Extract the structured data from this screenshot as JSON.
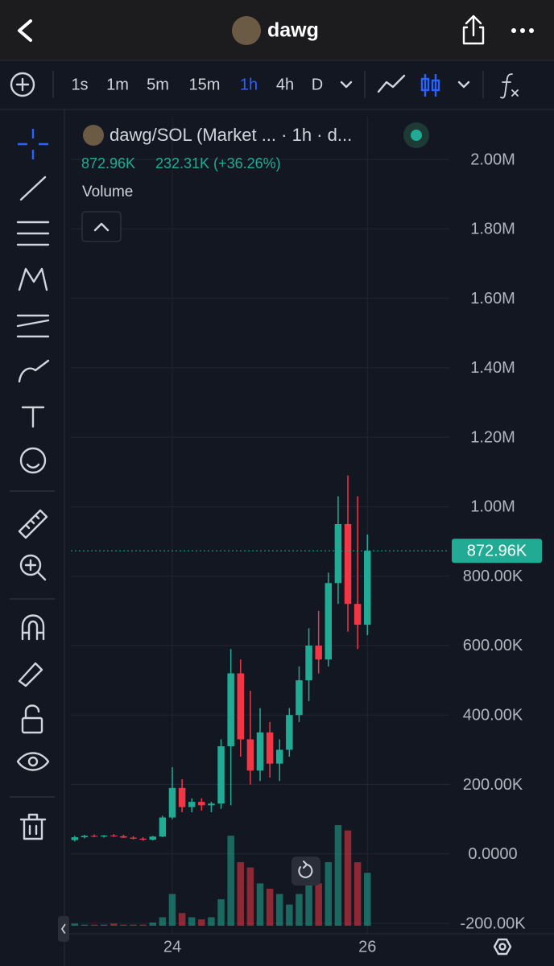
{
  "header": {
    "title": "dawg"
  },
  "toolbar": {
    "intervals": [
      "1s",
      "1m",
      "5m",
      "15m",
      "1h",
      "4h",
      "D"
    ],
    "active_interval": 4
  },
  "chart_data": {
    "type": "candlestick",
    "title": "dawg/SOL (Market ... · 1h · d...",
    "change": "232.31K (+36.26%)",
    "volume_label": "Volume",
    "x": [
      23.0,
      23.1,
      23.2,
      23.3,
      23.4,
      23.5,
      23.6,
      23.7,
      23.8,
      23.9,
      24.0,
      24.1,
      24.2,
      24.3,
      24.4,
      24.5,
      24.6,
      24.7,
      24.8,
      24.9,
      25.0,
      25.1,
      25.2,
      25.3,
      25.4,
      25.5,
      25.6,
      25.7,
      25.8,
      25.9,
      26.0
    ],
    "open": [
      40000,
      48000,
      52000,
      50000,
      53000,
      51000,
      47000,
      44000,
      41000,
      50000,
      105000,
      190000,
      135000,
      150000,
      140000,
      145000,
      310000,
      520000,
      330000,
      240000,
      350000,
      260000,
      300000,
      400000,
      500000,
      600000,
      560000,
      780000,
      950000,
      720000,
      660000
    ],
    "high": [
      52000,
      55000,
      56000,
      54000,
      57000,
      55000,
      51000,
      48000,
      52000,
      110000,
      250000,
      215000,
      160000,
      160000,
      150000,
      330000,
      590000,
      560000,
      470000,
      420000,
      380000,
      330000,
      420000,
      540000,
      650000,
      700000,
      810000,
      1030000,
      1090000,
      1030000,
      920000
    ],
    "low": [
      36000,
      45000,
      48000,
      47000,
      49000,
      46000,
      42000,
      38000,
      39000,
      48000,
      100000,
      120000,
      120000,
      125000,
      120000,
      130000,
      140000,
      280000,
      200000,
      210000,
      220000,
      210000,
      280000,
      380000,
      440000,
      520000,
      540000,
      720000,
      640000,
      590000,
      630000
    ],
    "close": [
      48000,
      52000,
      50000,
      53000,
      51000,
      47000,
      44000,
      41000,
      50000,
      105000,
      190000,
      135000,
      150000,
      140000,
      145000,
      310000,
      520000,
      330000,
      240000,
      350000,
      260000,
      300000,
      400000,
      500000,
      600000,
      560000,
      780000,
      950000,
      720000,
      660000,
      872960
    ],
    "volume": [
      2,
      1,
      1,
      1,
      2,
      1,
      1,
      1,
      3,
      8,
      30,
      12,
      8,
      6,
      8,
      25,
      85,
      60,
      55,
      40,
      35,
      30,
      20,
      30,
      45,
      40,
      60,
      95,
      90,
      60,
      50
    ],
    "up_color": "#22ab94",
    "down_color": "#f23645",
    "xlim": [
      22.96,
      26.84
    ],
    "xticks": [
      24,
      26
    ],
    "ylim": [
      -230000,
      2123000
    ],
    "yticks": [
      {
        "value": 2000000,
        "label": "2.00M"
      },
      {
        "value": 1800000,
        "label": "1.80M"
      },
      {
        "value": 1600000,
        "label": "1.60M"
      },
      {
        "value": 1400000,
        "label": "1.40M"
      },
      {
        "value": 1200000,
        "label": "1.20M"
      },
      {
        "value": 1000000,
        "label": "1.00M"
      },
      {
        "value": 800000,
        "label": "800.00K"
      },
      {
        "value": 600000,
        "label": "600.00K"
      },
      {
        "value": 400000,
        "label": "400.00K"
      },
      {
        "value": 200000,
        "label": "200.00K"
      },
      {
        "value": 0,
        "label": "0.0000"
      },
      {
        "value": -200000,
        "label": "-200.00K"
      }
    ],
    "last_price": {
      "value": 872960,
      "label": "872.96K"
    },
    "grid": true
  }
}
